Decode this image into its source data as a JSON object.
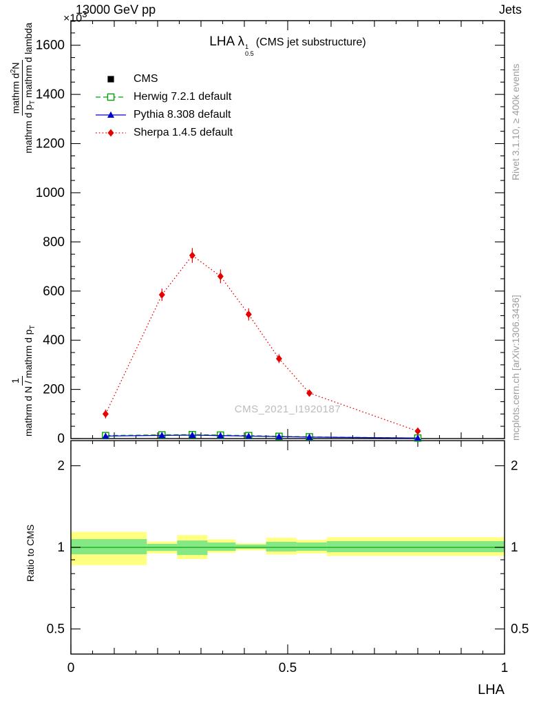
{
  "header": {
    "scale_prefix": "×10",
    "scale_exp": "3",
    "beam": "13000 GeV pp",
    "topic": "Jets"
  },
  "title": {
    "prefix": "LHA ",
    "symbol": "λ",
    "sup": "1",
    "sub": "0.5",
    "suffix": "(CMS jet substructure)"
  },
  "watermark": "CMS_2021_I1920187",
  "side_notes": {
    "right_top": "Rivet 3.1.10, ≥ 400k events",
    "right_bottom": "mcplots.cern.ch [arXiv:1306.3436]"
  },
  "axis_labels": {
    "x": "LHA",
    "ratio_y": "Ratio to CMS",
    "y_frac_outer": {
      "num": "1",
      "den": "mathrm d N / mathrm d p",
      "den_sub": "T"
    },
    "y_frac_inner": {
      "num": "mathrm d",
      "num_sup": "2",
      "num_b": "N",
      "den": "mathrm d p",
      "den_sub": "T",
      "den_b": " mathrm d lambda"
    }
  },
  "legend": [
    {
      "id": "cms",
      "label": "CMS",
      "color": "#000000",
      "line": "none",
      "marker": "square"
    },
    {
      "id": "herwig",
      "label": "Herwig 7.2.1 default",
      "color": "#00a000",
      "line": "dashed",
      "marker": "open-square"
    },
    {
      "id": "pythia",
      "label": "Pythia 8.308 default",
      "color": "#0000cc",
      "line": "solid",
      "marker": "triangle"
    },
    {
      "id": "sherpa",
      "label": "Sherpa 1.4.5 default",
      "color": "#e60000",
      "line": "dotted",
      "marker": "diamond"
    }
  ],
  "chart_data": {
    "type": "line",
    "title": "LHA λ^1_0.5 (CMS jet substructure)",
    "xlabel": "LHA",
    "ylabel": "1 / mathrm d N / mathrm d p_T · mathrm d²N / mathrm d p_T mathrm d lambda",
    "y_unit": "×10³",
    "main": {
      "xlim": [
        0,
        1
      ],
      "ylim": [
        0,
        1700
      ],
      "x_minor_step": 0.05,
      "x_medium_step": 0.1,
      "y_minor_step": 50,
      "y_major_step": 200,
      "xticks": [
        {
          "v": 0,
          "label": "0"
        },
        {
          "v": 0.5,
          "label": "0.5"
        },
        {
          "v": 1,
          "label": "1"
        }
      ],
      "yticks": [
        {
          "v": 0,
          "label": "0"
        },
        {
          "v": 200,
          "label": "200"
        },
        {
          "v": 400,
          "label": "400"
        },
        {
          "v": 600,
          "label": "600"
        },
        {
          "v": 800,
          "label": "800"
        },
        {
          "v": 1000,
          "label": "1000"
        },
        {
          "v": 1200,
          "label": "1200"
        },
        {
          "v": 1400,
          "label": "1400"
        },
        {
          "v": 1600,
          "label": "1600"
        }
      ]
    },
    "series": [
      {
        "id": "cms",
        "name": "CMS",
        "color": "#000000",
        "line": "none",
        "marker": "square",
        "x": [
          0.08,
          0.21,
          0.28,
          0.345,
          0.41,
          0.48,
          0.55,
          0.8
        ],
        "y": [
          10,
          13,
          14,
          13,
          11,
          9,
          7,
          2
        ]
      },
      {
        "id": "herwig",
        "name": "Herwig 7.2.1 default",
        "color": "#00a000",
        "line": "dashed",
        "marker": "open-square",
        "x": [
          0.08,
          0.21,
          0.28,
          0.345,
          0.41,
          0.48,
          0.55,
          0.8
        ],
        "y": [
          12,
          15,
          16,
          14,
          12,
          9,
          7,
          2
        ]
      },
      {
        "id": "pythia",
        "name": "Pythia 8.308 default",
        "color": "#0000cc",
        "line": "solid",
        "marker": "triangle",
        "x": [
          0.08,
          0.21,
          0.28,
          0.345,
          0.41,
          0.48,
          0.55,
          0.8
        ],
        "y": [
          10,
          13,
          14,
          12,
          10,
          8,
          6,
          2
        ]
      },
      {
        "id": "sherpa",
        "name": "Sherpa 1.4.5 default",
        "color": "#e60000",
        "line": "dotted",
        "marker": "diamond",
        "x": [
          0.08,
          0.21,
          0.28,
          0.345,
          0.41,
          0.48,
          0.55,
          0.8
        ],
        "y": [
          100,
          585,
          745,
          660,
          505,
          325,
          185,
          30
        ],
        "yerr": [
          18,
          25,
          30,
          28,
          25,
          18,
          12,
          10
        ]
      }
    ],
    "ratio": {
      "scale": "log",
      "ylim": [
        0.404,
        2.476
      ],
      "yticks": [
        {
          "v": 0.5,
          "label": "0.5"
        },
        {
          "v": 1,
          "label": "1"
        },
        {
          "v": 2,
          "label": "2"
        }
      ],
      "y_minor": [
        0.6,
        0.7,
        0.8,
        0.9
      ],
      "unity_color": "#2db52d",
      "yellow_color": "#ffff80",
      "green_color": "#84e884",
      "bands_yellow": [
        {
          "x0": 0.0,
          "x1": 0.175,
          "lo": 0.86,
          "hi": 1.14
        },
        {
          "x0": 0.175,
          "x1": 0.245,
          "lo": 0.95,
          "hi": 1.05
        },
        {
          "x0": 0.245,
          "x1": 0.315,
          "lo": 0.905,
          "hi": 1.11
        },
        {
          "x0": 0.315,
          "x1": 0.38,
          "lo": 0.955,
          "hi": 1.07
        },
        {
          "x0": 0.38,
          "x1": 0.45,
          "lo": 0.975,
          "hi": 1.035
        },
        {
          "x0": 0.45,
          "x1": 0.52,
          "lo": 0.94,
          "hi": 1.085
        },
        {
          "x0": 0.52,
          "x1": 0.59,
          "lo": 0.95,
          "hi": 1.065
        },
        {
          "x0": 0.59,
          "x1": 1.0,
          "lo": 0.93,
          "hi": 1.09
        }
      ],
      "bands_green": [
        {
          "x0": 0.0,
          "x1": 0.175,
          "lo": 0.943,
          "hi": 1.073
        },
        {
          "x0": 0.175,
          "x1": 0.245,
          "lo": 0.97,
          "hi": 1.03
        },
        {
          "x0": 0.245,
          "x1": 0.315,
          "lo": 0.937,
          "hi": 1.06
        },
        {
          "x0": 0.315,
          "x1": 0.38,
          "lo": 0.971,
          "hi": 1.042
        },
        {
          "x0": 0.38,
          "x1": 0.45,
          "lo": 0.988,
          "hi": 1.024
        },
        {
          "x0": 0.45,
          "x1": 0.52,
          "lo": 0.966,
          "hi": 1.048
        },
        {
          "x0": 0.52,
          "x1": 0.59,
          "lo": 0.971,
          "hi": 1.042
        },
        {
          "x0": 0.59,
          "x1": 1.0,
          "lo": 0.96,
          "hi": 1.054
        }
      ]
    }
  }
}
